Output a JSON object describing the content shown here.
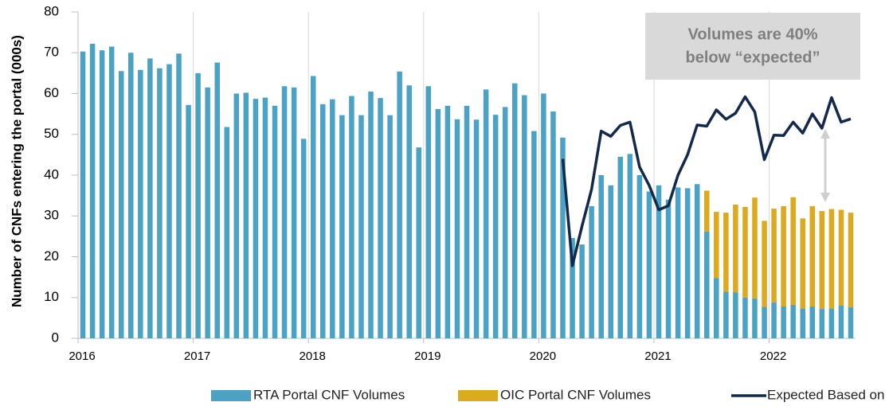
{
  "chart_data": {
    "type": "bar",
    "stacked": true,
    "y_label": "Number of CNFs entering the portal (000s)",
    "annotation": [
      "Volumes are 40%",
      "below “expected”"
    ],
    "categories": [
      "2016",
      null,
      null,
      null,
      null,
      null,
      null,
      null,
      null,
      null,
      null,
      null,
      "2017",
      null,
      null,
      null,
      null,
      null,
      null,
      null,
      null,
      null,
      null,
      null,
      "2018",
      null,
      null,
      null,
      null,
      null,
      null,
      null,
      null,
      null,
      null,
      null,
      "2019",
      null,
      null,
      null,
      null,
      null,
      null,
      null,
      null,
      null,
      null,
      null,
      "2020",
      null,
      null,
      null,
      null,
      null,
      null,
      null,
      null,
      null,
      null,
      null,
      "2021",
      null,
      null,
      null,
      null,
      null,
      null,
      null,
      null,
      null,
      null,
      null,
      "2022",
      null,
      null,
      null,
      null,
      null,
      null,
      null,
      null
    ],
    "ylim": [
      0,
      80
    ],
    "yticks": [
      0,
      10,
      20,
      30,
      40,
      50,
      60,
      70,
      80
    ],
    "grid": true,
    "series": [
      {
        "name": "RTA Portal CNF Volumes",
        "color": "#4aa2c5",
        "type": "bar",
        "values": [
          70.3,
          72.2,
          70.6,
          71.5,
          65.5,
          70,
          65.8,
          68.6,
          66.2,
          67.2,
          69.8,
          57.2,
          65,
          61.5,
          67.6,
          51.8,
          60,
          60.2,
          58.7,
          59,
          57,
          61.8,
          61.5,
          48.9,
          64.3,
          57.4,
          58.6,
          54.7,
          59.4,
          54.7,
          60.5,
          58.9,
          54.7,
          65.4,
          62,
          46.8,
          61.8,
          56.2,
          57,
          53.7,
          57,
          53.6,
          61,
          54.8,
          56.7,
          62.5,
          59.6,
          50.8,
          60,
          55.6,
          49.2,
          24.6,
          23,
          32.4,
          40,
          37.5,
          44.5,
          45.2,
          40,
          36,
          37.5,
          34,
          37,
          36.8,
          37.8,
          26.2,
          14.8,
          11.4,
          11.3,
          10,
          9.8,
          7.7,
          8.8,
          7.8,
          8.2,
          7.3,
          7.8,
          7.2,
          7.3,
          8,
          7.6
        ]
      },
      {
        "name": "OIC Portal CNF Volumes",
        "color": "#dbaa1f",
        "type": "bar",
        "values": [
          null,
          null,
          null,
          null,
          null,
          null,
          null,
          null,
          null,
          null,
          null,
          null,
          null,
          null,
          null,
          null,
          null,
          null,
          null,
          null,
          null,
          null,
          null,
          null,
          null,
          null,
          null,
          null,
          null,
          null,
          null,
          null,
          null,
          null,
          null,
          null,
          null,
          null,
          null,
          null,
          null,
          null,
          null,
          null,
          null,
          null,
          null,
          null,
          null,
          null,
          null,
          null,
          null,
          null,
          null,
          null,
          null,
          null,
          null,
          null,
          null,
          null,
          null,
          null,
          null,
          10,
          16.2,
          19.4,
          21.5,
          22.2,
          24.7,
          21.1,
          23,
          24.6,
          26.4,
          22.1,
          24.6,
          24,
          24.4,
          23.5,
          23.2
        ]
      },
      {
        "name": "Expected Based on Road Usage",
        "color": "#13294b",
        "type": "line",
        "values": [
          null,
          null,
          null,
          null,
          null,
          null,
          null,
          null,
          null,
          null,
          null,
          null,
          null,
          null,
          null,
          null,
          null,
          null,
          null,
          null,
          null,
          null,
          null,
          null,
          null,
          null,
          null,
          null,
          null,
          null,
          null,
          null,
          null,
          null,
          null,
          null,
          null,
          null,
          null,
          null,
          null,
          null,
          null,
          null,
          null,
          null,
          null,
          null,
          null,
          null,
          44,
          17.8,
          27.5,
          36.5,
          50.8,
          49.5,
          52.2,
          53,
          42,
          37.5,
          31.5,
          32.5,
          40,
          45,
          52.3,
          52,
          56,
          53.7,
          55.2,
          59.2,
          55.5,
          43.8,
          49.8,
          49.7,
          53,
          50.3,
          55,
          51.5,
          59,
          53,
          53.8
        ]
      }
    ]
  }
}
